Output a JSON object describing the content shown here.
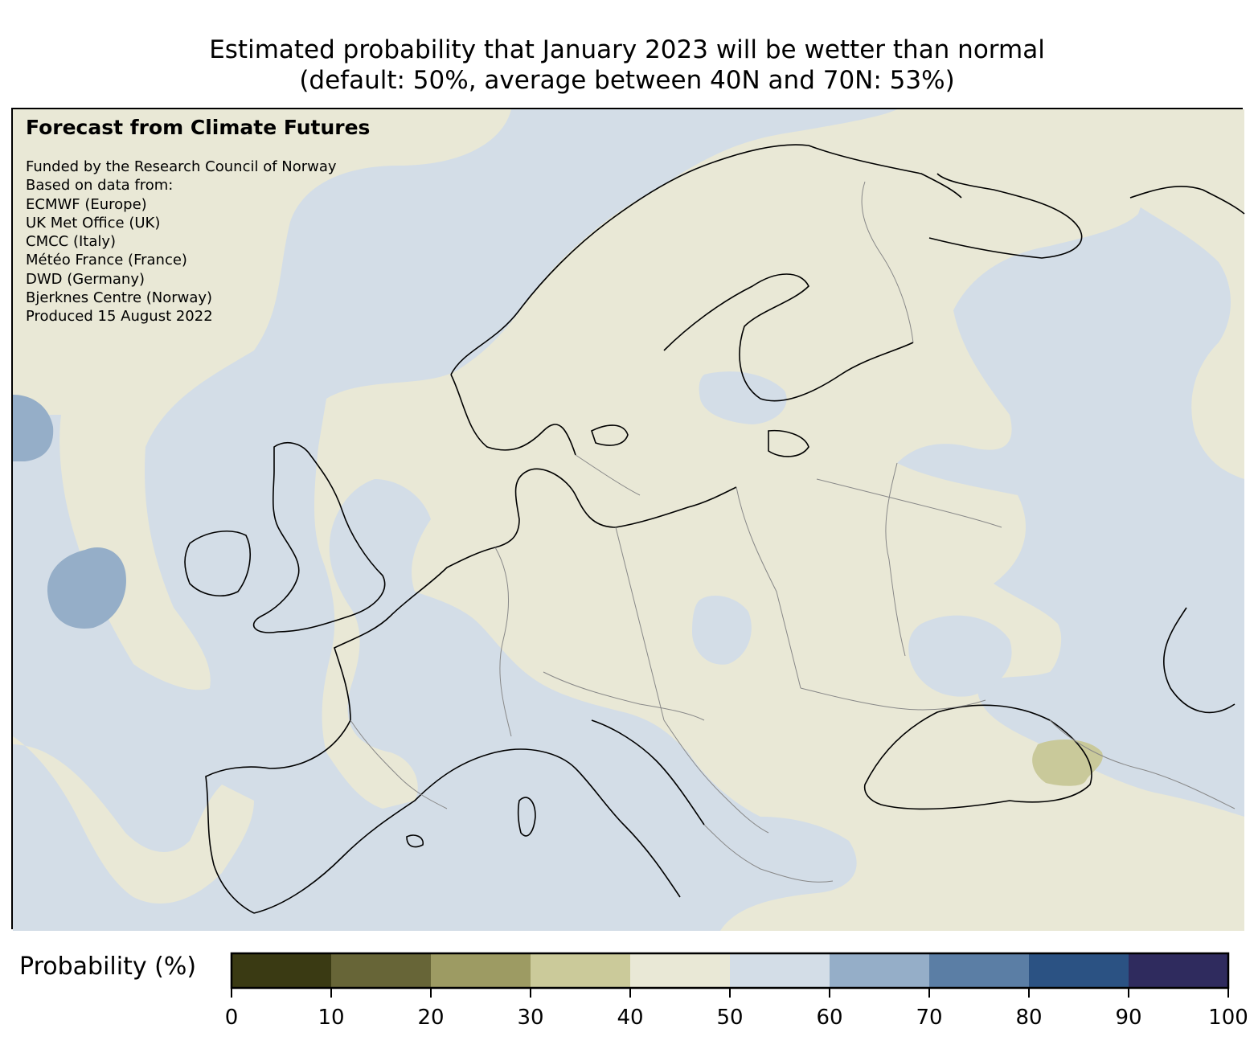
{
  "title": {
    "line1": "Estimated probability that January 2023 will be wetter than normal",
    "line2": "(default: 50%, average between 40N and 70N: 53%)"
  },
  "credits": {
    "heading": "Forecast from Climate Futures",
    "lines": [
      "Funded by the Research Council of Norway",
      "Based on data from:",
      "ECMWF (Europe)",
      "UK Met Office (UK)",
      "CMCC (Italy)",
      "Météo France (France)",
      "DWD (Germany)",
      "Bjerknes Centre (Norway)",
      "Produced 15 August 2022"
    ]
  },
  "map": {
    "colors": {
      "prob_40_50": "#e9e8d6",
      "prob_50_60": "#d3dde7",
      "prob_60_70": "#95aec8",
      "prob_30_40": "#c9c99a",
      "coastline": "#000000",
      "borders": "#888888"
    }
  },
  "colorbar": {
    "label": "Probability (%)",
    "ticks": [
      "0",
      "10",
      "20",
      "30",
      "40",
      "50",
      "60",
      "70",
      "80",
      "90",
      "100"
    ],
    "colors": [
      "#3a3a13",
      "#676537",
      "#9d9b63",
      "#cbca9a",
      "#e9e8d6",
      "#d3dde7",
      "#95aec8",
      "#5b7ea5",
      "#2b5283",
      "#2f2b5e"
    ]
  }
}
